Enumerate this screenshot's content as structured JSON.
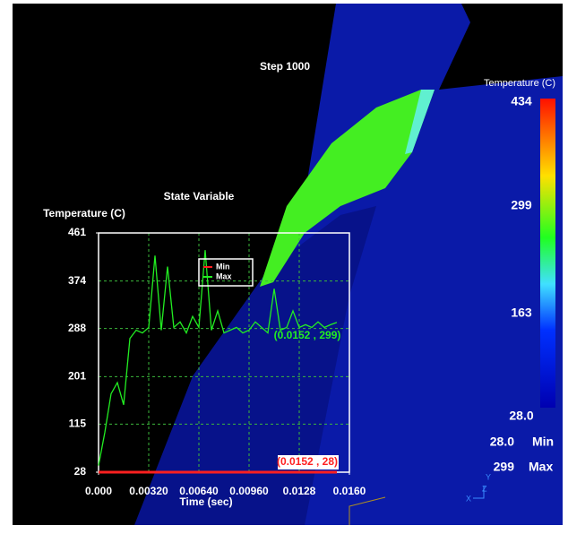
{
  "step_label": "Step 1000",
  "colorbar": {
    "title": "Temperature (C)",
    "labels": [
      "434",
      "299",
      "163",
      "28.0"
    ],
    "min_value": "28.0",
    "min_text": "Min",
    "max_value": "299",
    "max_text": "Max"
  },
  "axes_triad": [
    "Y",
    "Z",
    "X"
  ],
  "chart_data": {
    "type": "line",
    "title": "State Variable",
    "y_label": "Temperature (C)",
    "x_label": "Time (sec)",
    "x": [
      0,
      0.0004,
      0.0008,
      0.0012,
      0.0016,
      0.002,
      0.0024,
      0.0028,
      0.0032,
      0.0036,
      0.004,
      0.0044,
      0.0048,
      0.0052,
      0.0056,
      0.006,
      0.0064,
      0.0068,
      0.0072,
      0.0076,
      0.008,
      0.0084,
      0.0088,
      0.0092,
      0.0096,
      0.01,
      0.0104,
      0.0108,
      0.0112,
      0.0116,
      0.012,
      0.0124,
      0.0128,
      0.0132,
      0.0136,
      0.014,
      0.0144,
      0.0148,
      0.0152
    ],
    "series": [
      {
        "name": "Min",
        "color": "#ff2020",
        "values": [
          28,
          28,
          28,
          28,
          28,
          28,
          28,
          28,
          28,
          28,
          28,
          28,
          28,
          28,
          28,
          28,
          28,
          28,
          28,
          28,
          28,
          28,
          28,
          28,
          28,
          28,
          28,
          28,
          28,
          28,
          28,
          28,
          28,
          28,
          28,
          28,
          28,
          28,
          28
        ]
      },
      {
        "name": "Max",
        "color": "#22ee22",
        "values": [
          40,
          100,
          170,
          190,
          150,
          270,
          285,
          280,
          290,
          420,
          285,
          400,
          290,
          300,
          280,
          310,
          290,
          430,
          285,
          320,
          280,
          285,
          290,
          280,
          285,
          300,
          290,
          280,
          360,
          285,
          290,
          320,
          290,
          295,
          290,
          300,
          290,
          295,
          299
        ]
      }
    ],
    "xlim": [
      0,
      0.016
    ],
    "ylim": [
      28,
      461
    ],
    "xticks": [
      {
        "value": 0,
        "label": "0.000"
      },
      {
        "value": 0.0032,
        "label": "0.00320"
      },
      {
        "value": 0.0064,
        "label": "0.00640"
      },
      {
        "value": 0.0096,
        "label": "0.00960"
      },
      0.0128,
      {
        "value": 0.016,
        "label": "0.0160"
      }
    ],
    "yticks": [
      28,
      115,
      201,
      288,
      374,
      461
    ],
    "grid": true,
    "annotations": [
      {
        "text": "(0.0152 , 299)",
        "color": "#22ee22"
      },
      {
        "text": "(0.0152 , 28)",
        "color": "#ff2020"
      }
    ]
  }
}
